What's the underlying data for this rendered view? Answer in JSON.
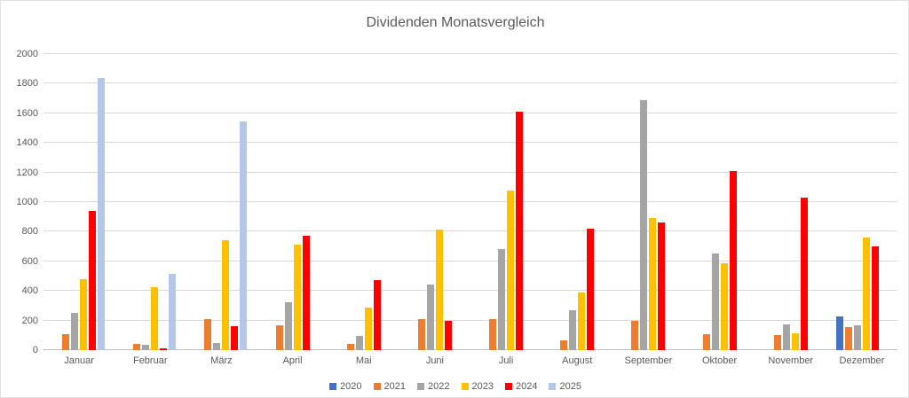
{
  "chart_data": {
    "type": "bar",
    "title": "Dividenden Monatsvergleich",
    "categories": [
      "Januar",
      "Februar",
      "März",
      "April",
      "Mai",
      "Juni",
      "Juli",
      "August",
      "September",
      "Oktober",
      "November",
      "Dezember"
    ],
    "series": [
      {
        "name": "2020",
        "color": "#4472C4",
        "values": [
          0,
          0,
          0,
          0,
          0,
          0,
          0,
          0,
          0,
          0,
          0,
          230
        ]
      },
      {
        "name": "2021",
        "color": "#ED7D31",
        "values": [
          110,
          40,
          210,
          170,
          45,
          210,
          210,
          65,
          200,
          105,
          100,
          155
        ]
      },
      {
        "name": "2022",
        "color": "#A5A5A5",
        "values": [
          250,
          35,
          50,
          325,
          95,
          445,
          680,
          270,
          1690,
          655,
          175,
          170
        ]
      },
      {
        "name": "2023",
        "color": "#FFC000",
        "values": [
          480,
          425,
          745,
          710,
          285,
          815,
          1080,
          390,
          890,
          585,
          115,
          760
        ]
      },
      {
        "name": "2024",
        "color": "#FF0000",
        "values": [
          940,
          10,
          160,
          775,
          475,
          200,
          1610,
          820,
          860,
          1210,
          1030,
          700
        ]
      },
      {
        "name": "2025",
        "color": "#B4C7E7",
        "values": [
          1840,
          515,
          1545,
          0,
          0,
          0,
          0,
          0,
          0,
          0,
          0,
          0
        ]
      }
    ],
    "xlabel": "",
    "ylabel": "",
    "ylim": [
      0,
      2000
    ],
    "ytick_step": 200,
    "grid": true,
    "legend_position": "bottom",
    "colors": {
      "title_text": "#595959",
      "axis_text": "#595959",
      "gridline": "#d9d9d9"
    }
  }
}
